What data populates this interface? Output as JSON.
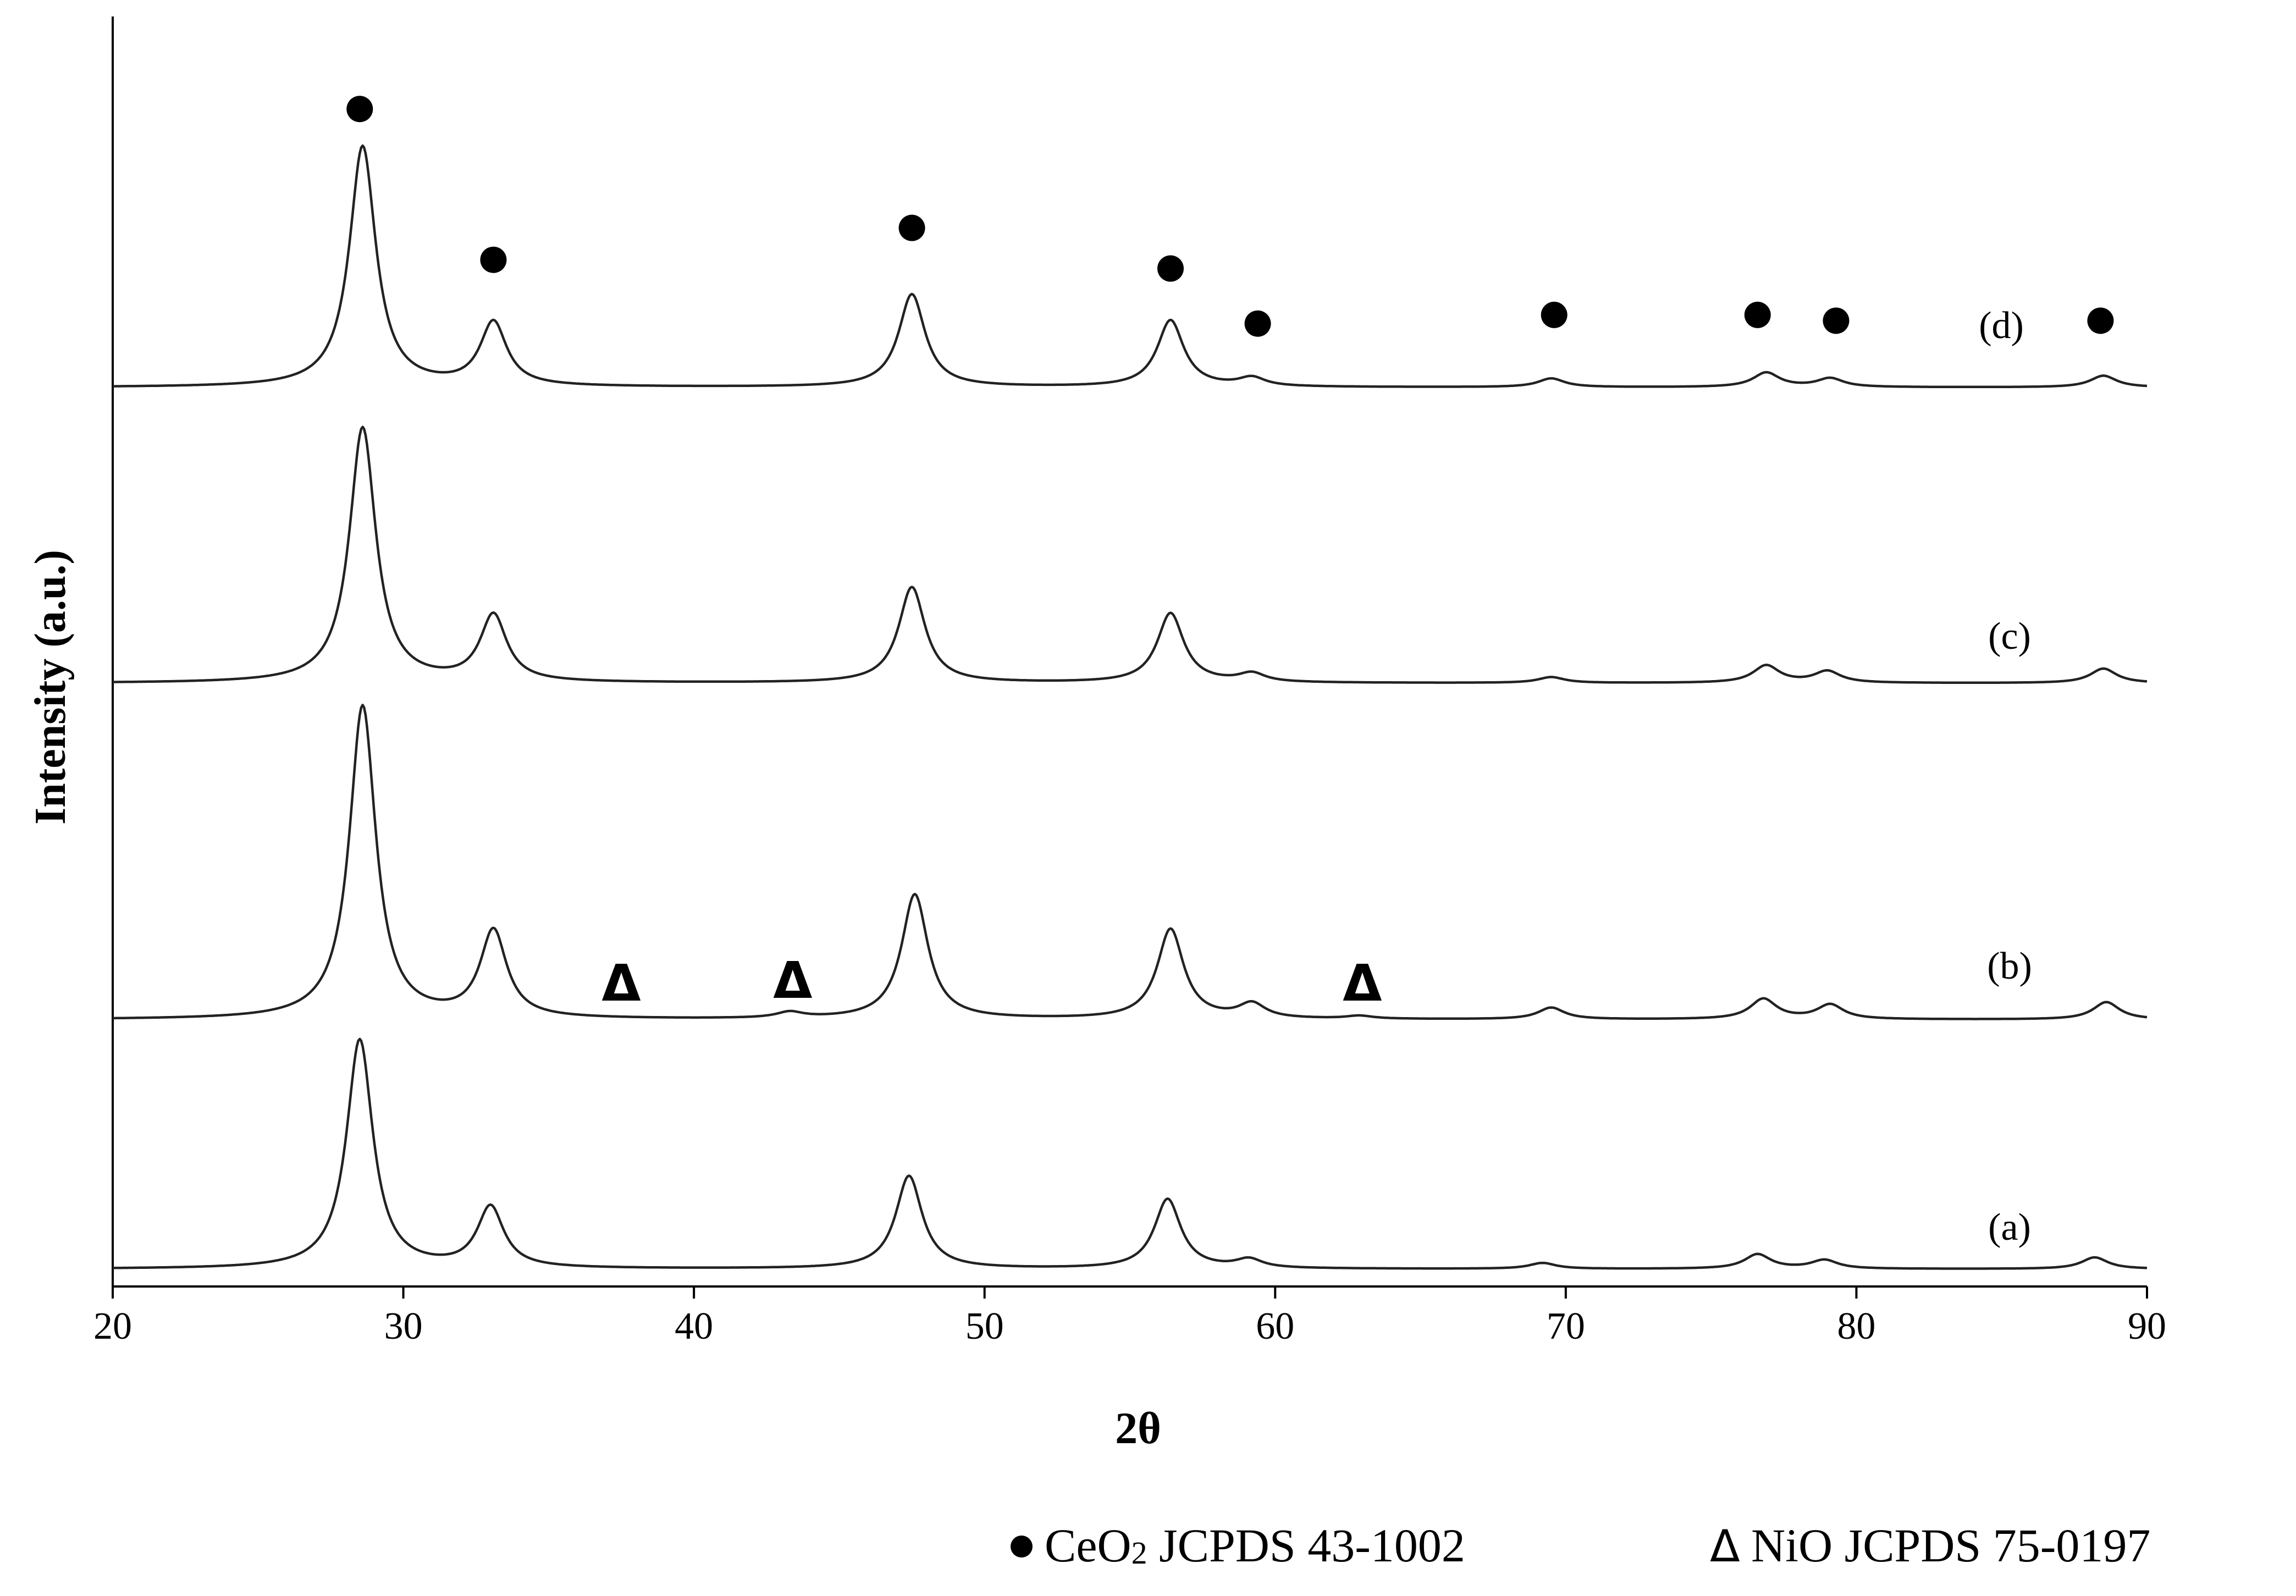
{
  "chart_data": {
    "type": "line",
    "title": "",
    "xlabel": "2θ",
    "ylabel": "Intensity (a.u.)",
    "xlim": [
      20,
      90
    ],
    "x_ticks": [
      20,
      30,
      40,
      50,
      60,
      70,
      80,
      90
    ],
    "x_tick_labels": [
      "20",
      "30",
      "40",
      "50",
      "60",
      "70",
      "80",
      "90"
    ],
    "y_ticks_shown": false,
    "grid": false,
    "peak_width": 0.55,
    "series": [
      {
        "name": "(a)",
        "baseline": 0.0,
        "peaks": [
          {
            "x": 28.5,
            "y": 0.79
          },
          {
            "x": 33.0,
            "y": 0.21
          },
          {
            "x": 47.4,
            "y": 0.32
          },
          {
            "x": 56.3,
            "y": 0.24
          },
          {
            "x": 59.1,
            "y": 0.03
          },
          {
            "x": 69.2,
            "y": 0.02
          },
          {
            "x": 76.6,
            "y": 0.05
          },
          {
            "x": 78.9,
            "y": 0.03
          },
          {
            "x": 88.2,
            "y": 0.04
          }
        ]
      },
      {
        "name": "(b)",
        "baseline": 0.86,
        "peaks": [
          {
            "x": 28.6,
            "y": 1.08
          },
          {
            "x": 33.1,
            "y": 0.3
          },
          {
            "x": 43.3,
            "y": 0.02
          },
          {
            "x": 47.6,
            "y": 0.43
          },
          {
            "x": 56.4,
            "y": 0.31
          },
          {
            "x": 59.2,
            "y": 0.05
          },
          {
            "x": 62.9,
            "y": 0.01
          },
          {
            "x": 69.5,
            "y": 0.04
          },
          {
            "x": 76.8,
            "y": 0.07
          },
          {
            "x": 79.1,
            "y": 0.05
          },
          {
            "x": 88.6,
            "y": 0.06
          }
        ]
      },
      {
        "name": "(c)",
        "baseline": 2.02,
        "peaks": [
          {
            "x": 28.6,
            "y": 0.88
          },
          {
            "x": 33.1,
            "y": 0.23
          },
          {
            "x": 47.5,
            "y": 0.33
          },
          {
            "x": 56.4,
            "y": 0.24
          },
          {
            "x": 59.2,
            "y": 0.03
          },
          {
            "x": 69.5,
            "y": 0.02
          },
          {
            "x": 76.9,
            "y": 0.06
          },
          {
            "x": 79.0,
            "y": 0.04
          },
          {
            "x": 88.5,
            "y": 0.05
          }
        ]
      },
      {
        "name": "(d)",
        "baseline": 3.04,
        "peaks": [
          {
            "x": 28.6,
            "y": 0.83
          },
          {
            "x": 33.1,
            "y": 0.22
          },
          {
            "x": 47.5,
            "y": 0.32
          },
          {
            "x": 56.4,
            "y": 0.23
          },
          {
            "x": 59.2,
            "y": 0.03
          },
          {
            "x": 69.5,
            "y": 0.03
          },
          {
            "x": 76.9,
            "y": 0.05
          },
          {
            "x": 79.1,
            "y": 0.03
          },
          {
            "x": 88.5,
            "y": 0.04
          }
        ]
      }
    ],
    "ylim": [
      -0.06,
      4.3
    ],
    "ceo2_markers": {
      "symbol": "●",
      "positions": [
        {
          "x": 28.5,
          "y": 4.0
        },
        {
          "x": 33.1,
          "y": 3.48
        },
        {
          "x": 47.5,
          "y": 3.59
        },
        {
          "x": 56.4,
          "y": 3.45
        },
        {
          "x": 59.4,
          "y": 3.26
        },
        {
          "x": 69.6,
          "y": 3.29
        },
        {
          "x": 76.6,
          "y": 3.29
        },
        {
          "x": 79.3,
          "y": 3.27
        },
        {
          "x": 88.4,
          "y": 3.27
        }
      ]
    },
    "nio_markers": {
      "symbol": "Δ",
      "positions": [
        {
          "x": 37.5,
          "y": 0.99
        },
        {
          "x": 43.4,
          "y": 1.0
        },
        {
          "x": 63.0,
          "y": 0.99
        }
      ]
    },
    "legend": {
      "placement": "bottom-right",
      "entries": [
        {
          "symbol": "●",
          "text_before": "CeO",
          "subscript": "2",
          "text_after": " JCPDS 43-1002"
        },
        {
          "symbol": "Δ",
          "text_before": "NiO JCPDS 75-0197",
          "subscript": "",
          "text_after": ""
        }
      ]
    }
  }
}
